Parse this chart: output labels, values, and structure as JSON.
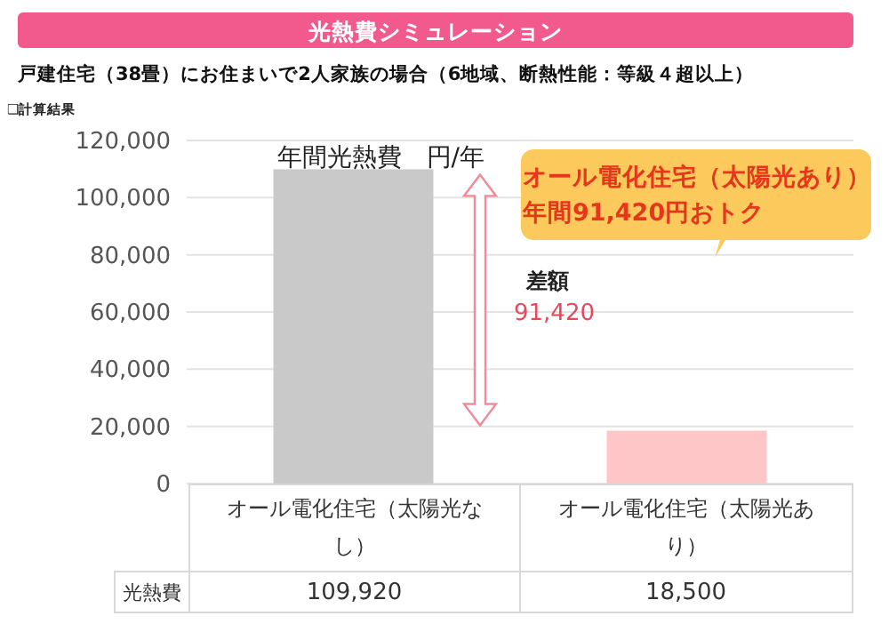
{
  "chart_data": {
    "type": "bar",
    "title": "光熱費シミュレーション",
    "subtitle": "戸建住宅（38畳）にお住まいで2人家族の場合（6地域、断熱性能：等級４超以上）",
    "categories": [
      "オール電化住宅（太陽光なし）",
      "オール電化住宅（太陽光あり）"
    ],
    "values": [
      109920,
      18500
    ],
    "value_labels": [
      "109,920",
      "18,500"
    ],
    "colors": [
      "#c9c9c9",
      "#ffc6c8"
    ],
    "ylim": [
      0,
      120000
    ],
    "yticks": [
      0,
      {
        "value": 20000,
        "label": "20,000"
      },
      {
        "value": 40000,
        "label": "40,000"
      },
      {
        "value": 60000,
        "label": "60,000"
      },
      {
        "value": 80000,
        "label": "80,000"
      },
      {
        "value": 100000,
        "label": "100,000"
      },
      {
        "value": 120000,
        "label": "120,000"
      }
    ],
    "grid": "y",
    "annotations": [
      "❑計算結果",
      "年間光熱費　円/年",
      "オール電化住宅（太陽光あり）",
      "年間91,420円おトク",
      "差額",
      "91,420",
      "光熱費"
    ]
  }
}
